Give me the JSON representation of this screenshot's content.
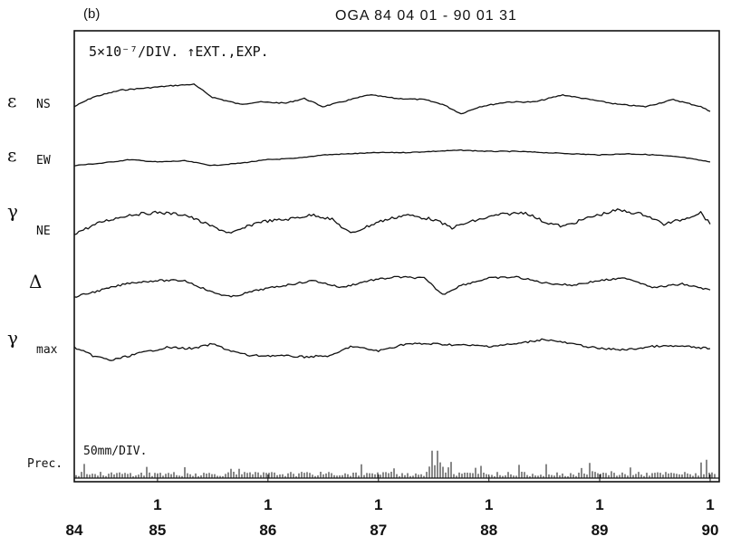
{
  "chart_data": {
    "type": "line",
    "panel_label": "(b)",
    "title": "OGA  84 04 01 - 90 01 31",
    "scale_note": "5×10⁻⁷/DIV.  ↑EXT.,EXP.",
    "precip_note": "50mm/DIV.",
    "x_range": [
      "1984-04-01",
      "1990-01-31"
    ],
    "x_ticks": [
      {
        "top": "",
        "bottom": "84",
        "date": "1984-04-01"
      },
      {
        "top": "1",
        "bottom": "85",
        "date": "1985-01-01"
      },
      {
        "top": "1",
        "bottom": "86",
        "date": "1986-01-01"
      },
      {
        "top": "1",
        "bottom": "87",
        "date": "1987-01-01"
      },
      {
        "top": "1",
        "bottom": "88",
        "date": "1988-01-01"
      },
      {
        "top": "1",
        "bottom": "89",
        "date": "1989-01-01"
      },
      {
        "top": "1",
        "bottom": "90",
        "date": "1990-01-01"
      }
    ],
    "grid": false,
    "series": [
      {
        "label_symbol": "ε",
        "label_sub": "NS",
        "y_unit": "DIV",
        "points": [
          [
            "1984-04",
            3.0
          ],
          [
            "1984-06",
            3.4
          ],
          [
            "1984-09",
            3.7
          ],
          [
            "1984-12",
            3.8
          ],
          [
            "1985-03",
            3.9
          ],
          [
            "1985-05",
            3.95
          ],
          [
            "1985-07",
            3.4
          ],
          [
            "1985-08",
            3.3
          ],
          [
            "1985-10",
            3.1
          ],
          [
            "1985-12",
            3.2
          ],
          [
            "1986-03",
            3.15
          ],
          [
            "1986-05",
            3.35
          ],
          [
            "1986-07",
            3.0
          ],
          [
            "1986-09",
            3.2
          ],
          [
            "1986-12",
            3.5
          ],
          [
            "1987-03",
            3.35
          ],
          [
            "1987-06",
            3.3
          ],
          [
            "1987-08",
            3.1
          ],
          [
            "1987-10",
            2.7
          ],
          [
            "1987-12",
            3.0
          ],
          [
            "1988-03",
            3.2
          ],
          [
            "1988-06",
            3.2
          ],
          [
            "1988-09",
            3.5
          ],
          [
            "1988-12",
            3.3
          ],
          [
            "1989-03",
            3.1
          ],
          [
            "1989-06",
            3.0
          ],
          [
            "1989-09",
            3.3
          ],
          [
            "1989-12",
            3.0
          ],
          [
            "1990-01",
            2.8
          ]
        ]
      },
      {
        "label_symbol": "ε",
        "label_sub": "EW",
        "y_unit": "DIV",
        "points": [
          [
            "1984-04",
            2.2
          ],
          [
            "1984-07",
            2.3
          ],
          [
            "1984-10",
            2.45
          ],
          [
            "1985-01",
            2.35
          ],
          [
            "1985-04",
            2.4
          ],
          [
            "1985-07",
            2.2
          ],
          [
            "1985-10",
            2.3
          ],
          [
            "1986-01",
            2.45
          ],
          [
            "1986-04",
            2.5
          ],
          [
            "1986-07",
            2.65
          ],
          [
            "1986-10",
            2.7
          ],
          [
            "1987-01",
            2.75
          ],
          [
            "1987-04",
            2.75
          ],
          [
            "1987-07",
            2.8
          ],
          [
            "1987-10",
            2.85
          ],
          [
            "1988-01",
            2.8
          ],
          [
            "1988-04",
            2.8
          ],
          [
            "1988-07",
            2.75
          ],
          [
            "1988-10",
            2.7
          ],
          [
            "1989-01",
            2.65
          ],
          [
            "1989-04",
            2.7
          ],
          [
            "1989-07",
            2.65
          ],
          [
            "1989-10",
            2.55
          ],
          [
            "1990-01",
            2.35
          ]
        ]
      },
      {
        "label_symbol": "γ",
        "label_sub": "NE",
        "y_unit": "DIV",
        "points": [
          [
            "1984-04",
            1.5
          ],
          [
            "1984-07",
            2.0
          ],
          [
            "1984-10",
            2.3
          ],
          [
            "1985-01",
            2.4
          ],
          [
            "1985-04",
            2.3
          ],
          [
            "1985-07",
            1.8
          ],
          [
            "1985-09",
            1.5
          ],
          [
            "1985-12",
            2.0
          ],
          [
            "1986-03",
            2.1
          ],
          [
            "1986-06",
            2.3
          ],
          [
            "1986-08",
            2.1
          ],
          [
            "1986-10",
            1.5
          ],
          [
            "1987-01",
            2.0
          ],
          [
            "1987-04",
            2.3
          ],
          [
            "1987-07",
            2.1
          ],
          [
            "1987-09",
            1.75
          ],
          [
            "1987-11",
            2.0
          ],
          [
            "1988-02",
            2.3
          ],
          [
            "1988-05",
            2.4
          ],
          [
            "1988-07",
            2.0
          ],
          [
            "1988-09",
            1.8
          ],
          [
            "1988-12",
            2.2
          ],
          [
            "1989-03",
            2.5
          ],
          [
            "1989-06",
            2.3
          ],
          [
            "1989-08",
            1.9
          ],
          [
            "1989-10",
            2.1
          ],
          [
            "1989-12",
            2.4
          ],
          [
            "1990-01",
            1.9
          ]
        ]
      },
      {
        "label_symbol": "Δ",
        "label_sub": "",
        "y_unit": "DIV",
        "points": [
          [
            "1984-04",
            1.5
          ],
          [
            "1984-07",
            1.8
          ],
          [
            "1984-10",
            2.1
          ],
          [
            "1985-01",
            2.2
          ],
          [
            "1985-04",
            2.2
          ],
          [
            "1985-07",
            1.7
          ],
          [
            "1985-09",
            1.5
          ],
          [
            "1985-12",
            1.8
          ],
          [
            "1986-03",
            2.0
          ],
          [
            "1986-06",
            2.2
          ],
          [
            "1986-09",
            1.9
          ],
          [
            "1986-12",
            2.2
          ],
          [
            "1987-03",
            2.35
          ],
          [
            "1987-06",
            2.3
          ],
          [
            "1987-08",
            1.6
          ],
          [
            "1987-10",
            2.0
          ],
          [
            "1988-01",
            2.3
          ],
          [
            "1988-04",
            2.35
          ],
          [
            "1988-07",
            2.1
          ],
          [
            "1988-10",
            2.0
          ],
          [
            "1989-01",
            2.2
          ],
          [
            "1989-04",
            2.3
          ],
          [
            "1989-07",
            1.9
          ],
          [
            "1989-10",
            2.05
          ],
          [
            "1990-01",
            1.8
          ]
        ]
      },
      {
        "label_symbol": "γ",
        "label_sub": "max",
        "y_unit": "DIV",
        "points": [
          [
            "1984-04",
            1.85
          ],
          [
            "1984-06",
            1.5
          ],
          [
            "1984-08",
            1.3
          ],
          [
            "1984-11",
            1.6
          ],
          [
            "1985-02",
            1.85
          ],
          [
            "1985-05",
            1.8
          ],
          [
            "1985-07",
            2.0
          ],
          [
            "1985-09",
            1.7
          ],
          [
            "1985-11",
            1.5
          ],
          [
            "1986-02",
            1.5
          ],
          [
            "1986-05",
            1.45
          ],
          [
            "1986-08",
            1.5
          ],
          [
            "1986-10",
            1.9
          ],
          [
            "1987-01",
            1.7
          ],
          [
            "1987-04",
            2.0
          ],
          [
            "1987-07",
            2.0
          ],
          [
            "1987-10",
            1.95
          ],
          [
            "1988-01",
            1.9
          ],
          [
            "1988-04",
            2.0
          ],
          [
            "1988-07",
            2.2
          ],
          [
            "1988-10",
            2.0
          ],
          [
            "1989-01",
            1.8
          ],
          [
            "1989-04",
            1.75
          ],
          [
            "1989-07",
            1.9
          ],
          [
            "1989-10",
            1.9
          ],
          [
            "1990-01",
            1.8
          ]
        ]
      }
    ],
    "precipitation": {
      "label": "Prec.",
      "unit": "mm",
      "scale": "50mm/DIV."
    }
  }
}
